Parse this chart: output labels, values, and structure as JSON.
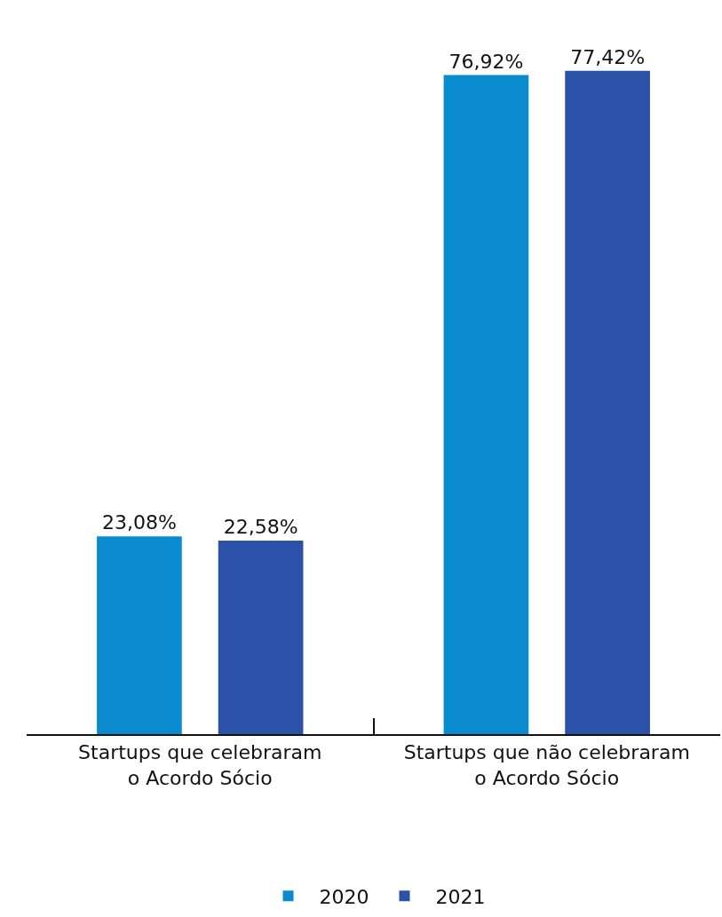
{
  "chart_data": {
    "type": "bar",
    "categories": [
      "Startups que celebraram\no Acordo Sócio",
      "Startups que não celebraram\no Acordo Sócio"
    ],
    "series": [
      {
        "name": "2020",
        "color": "#0a8bd0",
        "values": [
          23.08,
          76.92
        ],
        "value_labels": [
          "23,08%",
          "76,92%"
        ]
      },
      {
        "name": "2021",
        "color": "#2b52a8",
        "values": [
          22.58,
          77.42
        ],
        "value_labels": [
          "22,58%",
          "77,42%"
        ]
      }
    ],
    "legend": "bottom",
    "tick_labels": "x"
  }
}
